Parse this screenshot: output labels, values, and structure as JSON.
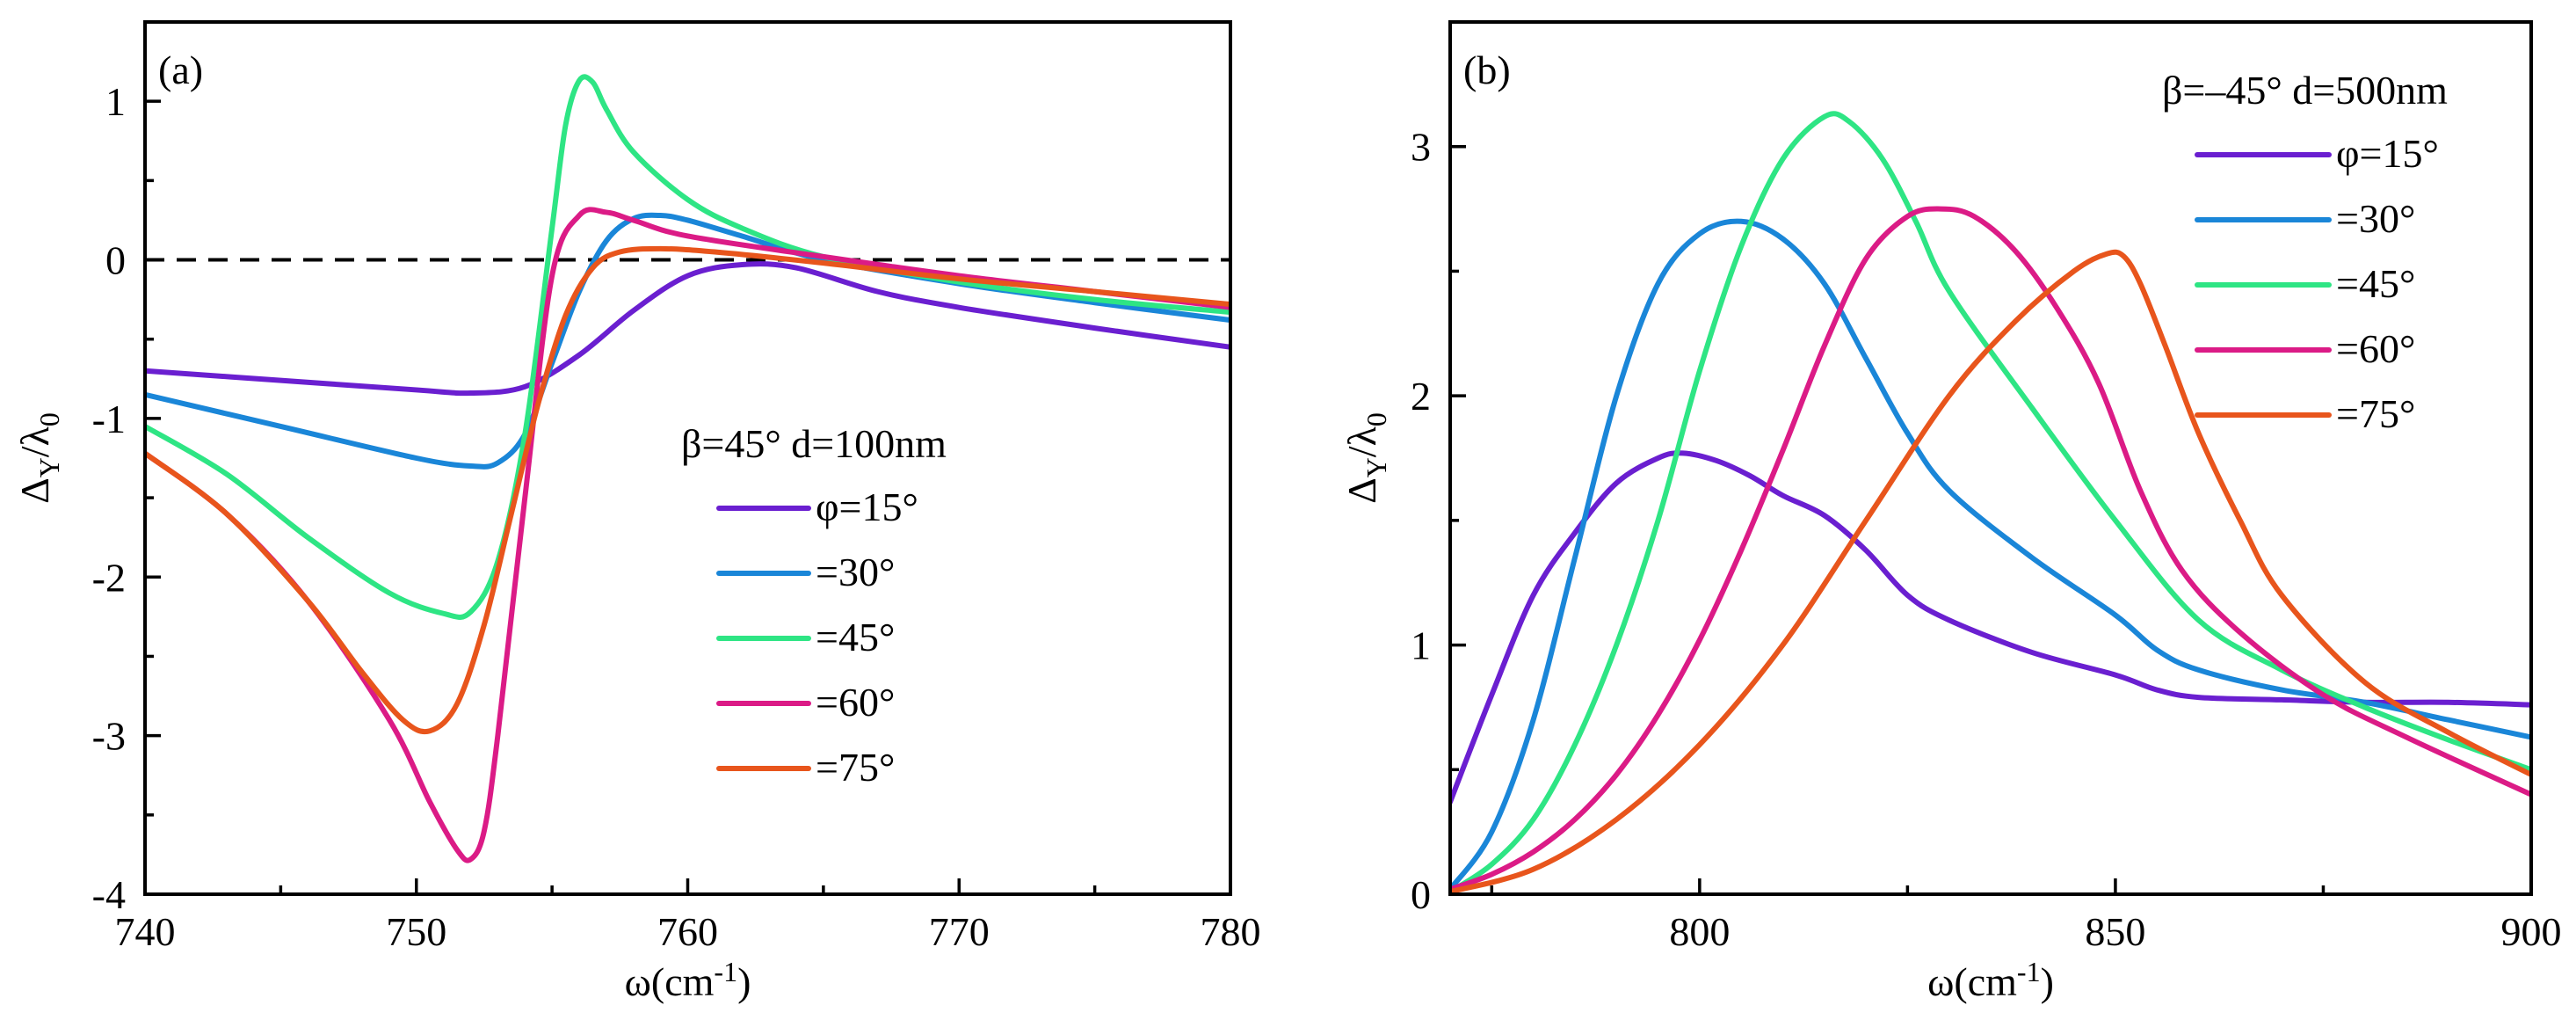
{
  "chart_data": [
    {
      "type": "line",
      "panel_label": "(a)",
      "xlabel": "ω(cm",
      "xlabel_sup": "-1",
      "xlabel_close": ")",
      "ylabel": "Δ",
      "ylabel_sub": "Y",
      "ylabel_mid": "/λ",
      "ylabel_sub2": "0",
      "xlim": [
        740,
        780
      ],
      "ylim": [
        -4,
        1.5
      ],
      "xticks": [
        740,
        750,
        760,
        770,
        780
      ],
      "xtick_labels": [
        "740",
        "750",
        "760",
        "770",
        "780"
      ],
      "yticks": [
        -4,
        -3,
        -2,
        -1,
        0,
        1
      ],
      "ytick_labels": [
        "-4",
        "-3",
        "-2",
        "-1",
        "0",
        "1"
      ],
      "reference_line": {
        "y": 0,
        "style": "dashed"
      },
      "legend_title": "β=45° d=100nm",
      "legend_position": "center-right",
      "series": [
        {
          "name": "φ=15°",
          "color": "#6a1fd0",
          "x": [
            740,
            745,
            750,
            752,
            754,
            756,
            758,
            760,
            762,
            764,
            767,
            770,
            775,
            780
          ],
          "y": [
            -0.7,
            -0.76,
            -0.82,
            -0.84,
            -0.8,
            -0.6,
            -0.32,
            -0.1,
            -0.03,
            -0.05,
            -0.2,
            -0.3,
            -0.43,
            -0.55
          ]
        },
        {
          "name": "=30°",
          "color": "#1a86d8",
          "x": [
            740,
            745,
            750,
            752,
            753,
            754,
            755,
            756,
            757,
            758,
            759,
            760,
            762,
            765,
            770,
            775,
            780
          ],
          "y": [
            -0.85,
            -1.05,
            -1.25,
            -1.3,
            -1.28,
            -1.1,
            -0.65,
            -0.2,
            0.12,
            0.26,
            0.28,
            0.25,
            0.15,
            0.0,
            -0.15,
            -0.27,
            -0.38
          ]
        },
        {
          "name": "=45°",
          "color": "#2ee584",
          "x": [
            740,
            743,
            746,
            749,
            751,
            752,
            753,
            754,
            755,
            755.5,
            756,
            756.5,
            757,
            758,
            760,
            762,
            765,
            770,
            775,
            780
          ],
          "y": [
            -1.05,
            -1.35,
            -1.75,
            -2.1,
            -2.23,
            -2.22,
            -1.9,
            -1.1,
            0.2,
            0.85,
            1.13,
            1.12,
            0.95,
            0.68,
            0.38,
            0.2,
            0.02,
            -0.14,
            -0.25,
            -0.33
          ]
        },
        {
          "name": "=60°",
          "color": "#db1b86",
          "x": [
            740,
            743,
            746,
            749,
            750.5,
            751.5,
            752,
            752.5,
            753,
            754,
            755,
            756,
            757,
            758,
            760,
            765,
            770,
            775,
            780
          ],
          "y": [
            -1.22,
            -1.6,
            -2.15,
            -2.9,
            -3.42,
            -3.72,
            -3.78,
            -3.6,
            -3.0,
            -1.5,
            -0.1,
            0.28,
            0.3,
            0.25,
            0.15,
            0.02,
            -0.1,
            -0.2,
            -0.3
          ]
        },
        {
          "name": "=75°",
          "color": "#e8551c",
          "x": [
            740,
            743,
            746,
            748,
            749.5,
            750.5,
            751.5,
            752.5,
            753.5,
            754.5,
            755.5,
            756.5,
            757.5,
            759,
            761,
            765,
            770,
            775,
            780
          ],
          "y": [
            -1.22,
            -1.6,
            -2.15,
            -2.6,
            -2.9,
            -2.97,
            -2.8,
            -2.3,
            -1.6,
            -0.9,
            -0.35,
            -0.05,
            0.05,
            0.07,
            0.05,
            -0.02,
            -0.12,
            -0.2,
            -0.28
          ]
        }
      ]
    },
    {
      "type": "line",
      "panel_label": "(b)",
      "xlabel": "ω(cm",
      "xlabel_sup": "-1",
      "xlabel_close": ")",
      "ylabel": "Δ",
      "ylabel_sub": "Y",
      "ylabel_mid": "/λ",
      "ylabel_sub2": "0",
      "xlim": [
        770,
        900
      ],
      "ylim": [
        0,
        3.5
      ],
      "xticks": [
        800,
        850,
        900
      ],
      "xtick_labels": [
        "800",
        "850",
        "900"
      ],
      "yticks": [
        0,
        1,
        2,
        3
      ],
      "ytick_labels": [
        "0",
        "1",
        "2",
        "3"
      ],
      "legend_title": "β=–45° d=500nm",
      "legend_position": "top-right",
      "series": [
        {
          "name": "φ=15°",
          "color": "#6a1fd0",
          "x": [
            770,
            775,
            780,
            785,
            790,
            795,
            798,
            802,
            806,
            810,
            815,
            820,
            825,
            830,
            840,
            850,
            855,
            860,
            870,
            880,
            890,
            900
          ],
          "y": [
            0.37,
            0.8,
            1.2,
            1.45,
            1.65,
            1.75,
            1.77,
            1.74,
            1.68,
            1.6,
            1.52,
            1.38,
            1.2,
            1.1,
            0.97,
            0.88,
            0.82,
            0.79,
            0.78,
            0.77,
            0.77,
            0.76
          ]
        },
        {
          "name": "=30°",
          "color": "#1a86d8",
          "x": [
            770,
            775,
            780,
            785,
            790,
            795,
            800,
            805,
            810,
            815,
            820,
            825,
            830,
            840,
            850,
            855,
            860,
            870,
            880,
            890,
            900
          ],
          "y": [
            0.02,
            0.25,
            0.7,
            1.35,
            2.0,
            2.45,
            2.65,
            2.7,
            2.63,
            2.45,
            2.15,
            1.85,
            1.62,
            1.35,
            1.12,
            0.98,
            0.9,
            0.82,
            0.77,
            0.7,
            0.63
          ]
        },
        {
          "name": "=45°",
          "color": "#2ee584",
          "x": [
            770,
            775,
            780,
            785,
            790,
            795,
            800,
            805,
            810,
            815,
            818,
            822,
            826,
            830,
            840,
            850,
            860,
            870,
            880,
            890,
            900
          ],
          "y": [
            0.01,
            0.12,
            0.3,
            0.6,
            1.0,
            1.5,
            2.1,
            2.6,
            2.95,
            3.12,
            3.1,
            2.95,
            2.7,
            2.42,
            1.95,
            1.5,
            1.1,
            0.9,
            0.75,
            0.62,
            0.5
          ]
        },
        {
          "name": "=60°",
          "color": "#db1b86",
          "x": [
            770,
            775,
            780,
            785,
            790,
            795,
            800,
            805,
            810,
            815,
            820,
            825,
            829,
            833,
            838,
            843,
            848,
            853,
            858,
            865,
            875,
            885,
            900
          ],
          "y": [
            0.02,
            0.08,
            0.17,
            0.3,
            0.48,
            0.72,
            1.02,
            1.38,
            1.78,
            2.2,
            2.55,
            2.72,
            2.75,
            2.72,
            2.58,
            2.35,
            2.05,
            1.62,
            1.3,
            1.05,
            0.8,
            0.63,
            0.4
          ]
        },
        {
          "name": "=75°",
          "color": "#e8551c",
          "x": [
            770,
            780,
            790,
            800,
            810,
            820,
            830,
            838,
            845,
            849,
            851,
            853,
            856,
            860,
            865,
            870,
            880,
            890,
            900
          ],
          "y": [
            0.01,
            0.1,
            0.3,
            0.6,
            1.0,
            1.5,
            2.0,
            2.3,
            2.5,
            2.57,
            2.56,
            2.45,
            2.2,
            1.85,
            1.5,
            1.2,
            0.85,
            0.65,
            0.48
          ]
        }
      ]
    }
  ]
}
